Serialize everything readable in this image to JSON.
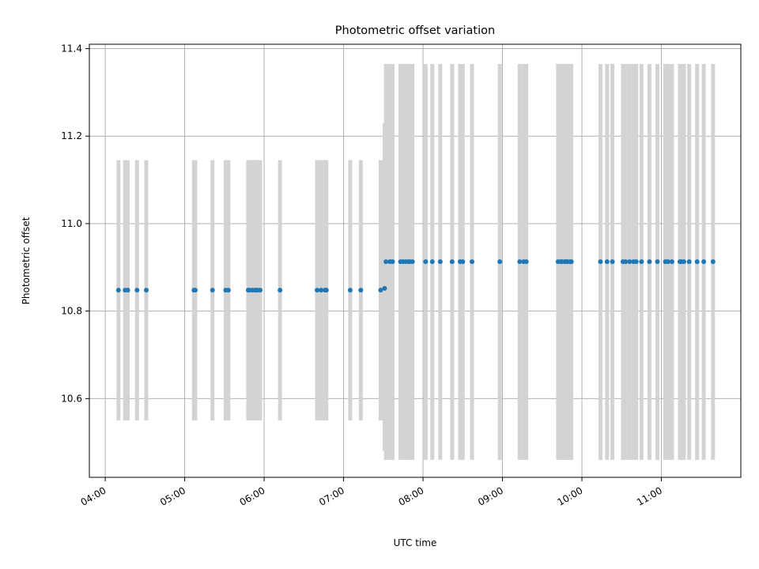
{
  "chart_data": {
    "type": "scatter",
    "title": "Photometric offset variation",
    "xlabel": "UTC time",
    "ylabel": "Photometric offset",
    "x_unit": "HH:MM UTC",
    "xlim": [
      "03:48",
      "12:00"
    ],
    "ylim": [
      10.42,
      11.41
    ],
    "x_ticks": [
      "04:00",
      "05:00",
      "06:00",
      "07:00",
      "08:00",
      "09:00",
      "10:00",
      "11:00"
    ],
    "y_ticks": [
      "10.6",
      "10.8",
      "11.0",
      "11.2",
      "11.4"
    ],
    "grid": true,
    "colors": {
      "points": "#1f77b4",
      "error_bars": "#d3d3d3",
      "grid": "#b0b0b0"
    },
    "series": [
      {
        "x": [
          "04:10",
          "04:15",
          "04:17",
          "04:24",
          "04:31",
          "05:07",
          "05:08",
          "05:21",
          "05:31",
          "05:33",
          "05:48",
          "05:49",
          "05:51",
          "05:53",
          "05:54",
          "05:55",
          "05:57",
          "06:12",
          "06:40",
          "06:43",
          "06:46",
          "06:47",
          "07:05",
          "07:13",
          "07:28",
          "07:31",
          "07:32",
          "07:35",
          "07:37",
          "07:43",
          "07:45",
          "07:47",
          "07:49",
          "07:50",
          "07:52",
          "08:02",
          "08:07",
          "08:13",
          "08:22",
          "08:28",
          "08:30",
          "08:37",
          "08:58",
          "09:13",
          "09:16",
          "09:18",
          "09:42",
          "09:44",
          "09:45",
          "09:47",
          "09:48",
          "09:49",
          "09:51",
          "09:52",
          "10:14",
          "10:19",
          "10:23",
          "10:31",
          "10:33",
          "10:36",
          "10:39",
          "10:41",
          "10:45",
          "10:51",
          "10:57",
          "11:03",
          "11:05",
          "11:08",
          "11:14",
          "11:15",
          "11:17",
          "11:21",
          "11:27",
          "11:32",
          "11:39"
        ],
        "y": [
          10.848,
          10.848,
          10.848,
          10.848,
          10.848,
          10.848,
          10.848,
          10.848,
          10.848,
          10.848,
          10.848,
          10.848,
          10.848,
          10.848,
          10.848,
          10.848,
          10.848,
          10.848,
          10.848,
          10.848,
          10.848,
          10.848,
          10.848,
          10.848,
          10.848,
          10.852,
          10.913,
          10.913,
          10.913,
          10.913,
          10.913,
          10.913,
          10.913,
          10.913,
          10.913,
          10.913,
          10.913,
          10.913,
          10.913,
          10.913,
          10.913,
          10.913,
          10.913,
          10.913,
          10.913,
          10.913,
          10.913,
          10.913,
          10.913,
          10.913,
          10.913,
          10.913,
          10.913,
          10.913,
          10.913,
          10.913,
          10.913,
          10.913,
          10.913,
          10.913,
          10.913,
          10.913,
          10.913,
          10.913,
          10.913,
          10.913,
          10.913,
          10.913,
          10.913,
          10.913,
          10.913,
          10.913,
          10.913,
          10.913,
          10.913
        ],
        "yerr_lower": [
          10.55,
          10.55,
          10.55,
          10.55,
          10.55,
          10.55,
          10.55,
          10.55,
          10.55,
          10.55,
          10.55,
          10.55,
          10.55,
          10.55,
          10.55,
          10.55,
          10.55,
          10.55,
          10.55,
          10.55,
          10.55,
          10.55,
          10.55,
          10.55,
          10.55,
          10.48,
          10.46,
          10.46,
          10.46,
          10.46,
          10.46,
          10.46,
          10.46,
          10.46,
          10.46,
          10.46,
          10.46,
          10.46,
          10.46,
          10.46,
          10.46,
          10.46,
          10.46,
          10.46,
          10.46,
          10.46,
          10.46,
          10.46,
          10.46,
          10.46,
          10.46,
          10.46,
          10.46,
          10.46,
          10.46,
          10.46,
          10.46,
          10.46,
          10.46,
          10.46,
          10.46,
          10.46,
          10.46,
          10.46,
          10.46,
          10.46,
          10.46,
          10.46,
          10.46,
          10.46,
          10.46,
          10.46,
          10.46,
          10.46,
          10.46
        ],
        "yerr_upper": [
          11.145,
          11.145,
          11.145,
          11.145,
          11.145,
          11.145,
          11.145,
          11.145,
          11.145,
          11.145,
          11.145,
          11.145,
          11.145,
          11.145,
          11.145,
          11.145,
          11.145,
          11.145,
          11.145,
          11.145,
          11.145,
          11.145,
          11.145,
          11.145,
          11.145,
          11.23,
          11.365,
          11.365,
          11.365,
          11.365,
          11.365,
          11.365,
          11.365,
          11.365,
          11.365,
          11.365,
          11.365,
          11.365,
          11.365,
          11.365,
          11.365,
          11.365,
          11.365,
          11.365,
          11.365,
          11.365,
          11.365,
          11.365,
          11.365,
          11.365,
          11.365,
          11.365,
          11.365,
          11.365,
          11.365,
          11.365,
          11.365,
          11.365,
          11.365,
          11.365,
          11.365,
          11.365,
          11.365,
          11.365,
          11.365,
          11.365,
          11.365,
          11.365,
          11.365,
          11.365,
          11.365,
          11.365,
          11.365,
          11.365,
          11.365
        ]
      }
    ]
  }
}
